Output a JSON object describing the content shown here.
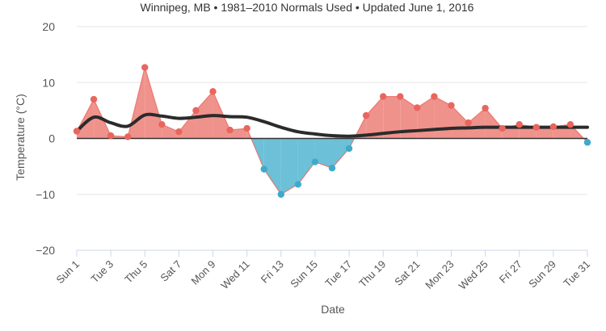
{
  "chart_data": {
    "type": "area",
    "subtitle": "Winnipeg, MB • 1981–2010 Normals Used • Updated June 1, 2016",
    "xlabel": "Date",
    "ylabel": "Temperature (°C)",
    "ylim": [
      -20,
      20
    ],
    "yticks": [
      "20",
      "10",
      "0",
      "−10",
      "−20"
    ],
    "xticks": [
      "Sun 1",
      "Tue 3",
      "Thu 5",
      "Sat 7",
      "Mon 9",
      "Wed 11",
      "Fri 13",
      "Sun 15",
      "Tue 17",
      "Thu 19",
      "Sat 21",
      "Mon 23",
      "Wed 25",
      "Fri 27",
      "Sun 29",
      "Tue 31"
    ],
    "x": [
      1,
      2,
      3,
      4,
      5,
      6,
      7,
      8,
      9,
      10,
      11,
      12,
      13,
      14,
      15,
      16,
      17,
      18,
      19,
      20,
      21,
      22,
      23,
      24,
      25,
      26,
      27,
      28,
      29,
      30,
      31
    ],
    "series": [
      {
        "values": [
          1.3,
          7.0,
          0.5,
          0.3,
          12.7,
          2.5,
          1.2,
          5.0,
          8.4,
          1.5,
          1.8,
          -5.5,
          -10.0,
          -8.2,
          -4.2,
          -5.3,
          -1.8,
          4.1,
          7.5,
          7.5,
          5.5,
          7.5,
          5.9,
          2.8,
          5.4,
          1.8,
          2.5,
          2.0,
          2.1,
          2.5,
          -0.7
        ]
      },
      {
        "values": [
          1.3,
          3.8,
          2.8,
          2.2,
          4.2,
          4.0,
          3.6,
          3.8,
          4.1,
          3.9,
          3.8,
          3.0,
          2.0,
          1.2,
          0.8,
          0.5,
          0.4,
          0.6,
          0.9,
          1.2,
          1.4,
          1.6,
          1.8,
          1.9,
          2.0,
          2.0,
          2.0,
          2.0,
          2.0,
          2.0,
          2.0
        ]
      }
    ],
    "grid": true,
    "colors": {
      "above": "#e8665e",
      "above_fill": "#f0928c",
      "below": "#3eaacb",
      "below_fill": "#6cc0d8",
      "normal_line": "#2b2b2b",
      "grid": "#e6e6e6",
      "zero_line": "#333333"
    }
  }
}
